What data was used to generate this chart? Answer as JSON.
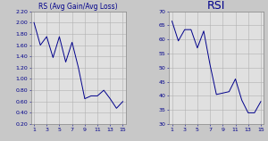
{
  "x": [
    1,
    2,
    3,
    4,
    5,
    6,
    7,
    8,
    9,
    10,
    11,
    12,
    13,
    14,
    15
  ],
  "rs_values": [
    2.0,
    1.6,
    1.75,
    1.38,
    1.75,
    1.3,
    1.65,
    1.2,
    0.65,
    0.7,
    0.7,
    0.8,
    0.65,
    0.48,
    0.6
  ],
  "rsi_values": [
    66.5,
    59.5,
    63.5,
    63.5,
    57.0,
    63.0,
    51.0,
    40.5,
    41.0,
    41.5,
    46.0,
    38.5,
    34.0,
    34.0,
    38.0
  ],
  "rs_title": "RS (Avg Gain/Avg Loss)",
  "rsi_title": "RSI",
  "rs_ylim": [
    0.2,
    2.2
  ],
  "rs_yticks": [
    0.2,
    0.4,
    0.6,
    0.8,
    1.0,
    1.2,
    1.4,
    1.6,
    1.8,
    2.0,
    2.2
  ],
  "rsi_ylim": [
    30,
    70
  ],
  "rsi_yticks": [
    30,
    35,
    40,
    45,
    50,
    55,
    60,
    65,
    70
  ],
  "xticks": [
    1,
    3,
    5,
    7,
    9,
    11,
    13,
    15
  ],
  "line_color": "#00008B",
  "title_color": "#00008B",
  "grid_color": "#B0B0B0",
  "bg_color": "#E0E0E0",
  "outer_bg": "#C8C8C8",
  "title_fontsize": 5.5,
  "tick_fontsize": 4.5,
  "rsi_title_fontsize": 9
}
